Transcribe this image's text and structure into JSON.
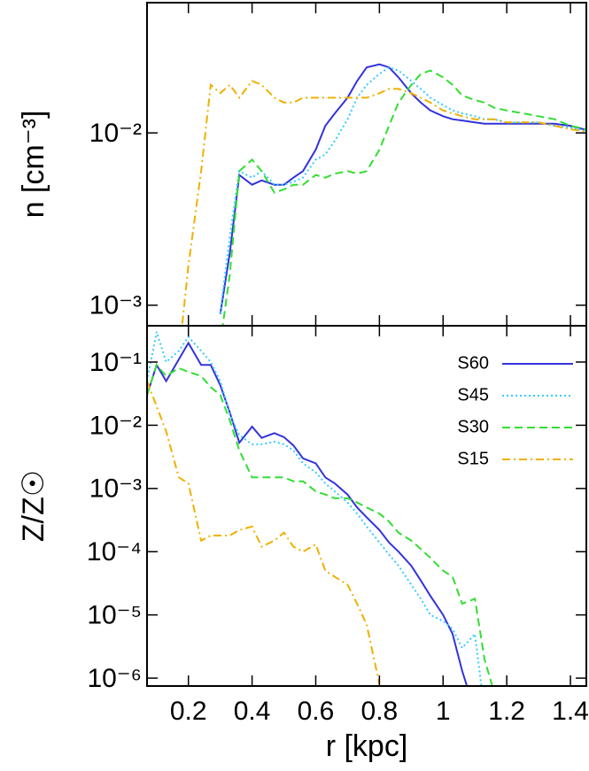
{
  "chart_data": [
    {
      "type": "line",
      "ylabel": "n [cm⁻³]",
      "ylog": true,
      "x": [
        0.07,
        0.1,
        0.13,
        0.17,
        0.2,
        0.24,
        0.27,
        0.3,
        0.33,
        0.36,
        0.4,
        0.43,
        0.47,
        0.5,
        0.53,
        0.56,
        0.6,
        0.63,
        0.66,
        0.7,
        0.73,
        0.76,
        0.8,
        0.83,
        0.86,
        0.9,
        0.93,
        0.96,
        1.0,
        1.03,
        1.06,
        1.1,
        1.13,
        1.16,
        1.2,
        1.25,
        1.3,
        1.35,
        1.4,
        1.45
      ],
      "xlim": [
        0.07,
        1.45
      ],
      "xticks": [
        0.2,
        0.4,
        0.6,
        0.8,
        1.0,
        1.2,
        1.4
      ],
      "ylim": [
        0.00076,
        0.057
      ],
      "yticks": [
        {
          "value": 0.001,
          "label": "10⁻³"
        },
        {
          "value": 0.01,
          "label": "10⁻²"
        }
      ],
      "series": [
        {
          "color": "#3333dd",
          "dash": "solid",
          "values": [
            null,
            null,
            null,
            null,
            null,
            null,
            null,
            0.00089,
            0.002,
            0.0057,
            0.005,
            0.0053,
            0.005,
            0.005,
            0.0055,
            0.006,
            0.008,
            0.011,
            0.013,
            0.016,
            0.02,
            0.024,
            0.025,
            0.024,
            0.021,
            0.017,
            0.015,
            0.0135,
            0.0125,
            0.012,
            0.0118,
            0.0115,
            0.0113,
            0.0113,
            0.0113,
            0.0113,
            0.0113,
            0.0113,
            0.011,
            0.0104
          ]
        },
        {
          "color": "#33ccff",
          "dash": "dotted",
          "values": [
            null,
            null,
            null,
            null,
            null,
            null,
            null,
            0.0009,
            0.0025,
            0.006,
            0.0055,
            0.006,
            0.005,
            0.005,
            0.0052,
            0.0055,
            0.007,
            0.0075,
            0.009,
            0.012,
            0.016,
            0.019,
            0.022,
            0.024,
            0.023,
            0.02,
            0.018,
            0.016,
            0.0145,
            0.0135,
            0.013,
            0.0125,
            0.012,
            0.012,
            0.0115,
            0.0115,
            0.0115,
            0.011,
            0.0107,
            0.0103
          ]
        },
        {
          "color": "#33dd33",
          "dash": "dashed",
          "values": [
            null,
            null,
            null,
            null,
            null,
            null,
            null,
            0.0006,
            0.0015,
            0.006,
            0.007,
            0.006,
            0.0045,
            0.0047,
            0.005,
            0.005,
            0.0057,
            0.0055,
            0.0058,
            0.006,
            0.0058,
            0.006,
            0.008,
            0.011,
            0.015,
            0.019,
            0.022,
            0.023,
            0.021,
            0.019,
            0.0165,
            0.0155,
            0.015,
            0.014,
            0.0135,
            0.013,
            0.0125,
            0.012,
            0.011,
            0.0105
          ]
        },
        {
          "color": "#f0b000",
          "dash": "dashdot",
          "values": [
            null,
            null,
            null,
            0.0005,
            0.0017,
            0.006,
            0.019,
            0.017,
            0.019,
            0.016,
            0.02,
            0.019,
            0.016,
            0.015,
            0.015,
            0.016,
            0.016,
            0.016,
            0.016,
            0.016,
            0.016,
            0.016,
            0.017,
            0.018,
            0.018,
            0.017,
            0.016,
            0.015,
            0.0135,
            0.013,
            0.0125,
            0.012,
            0.012,
            0.012,
            0.0115,
            0.0115,
            0.0115,
            0.011,
            0.0105,
            0.0102
          ]
        }
      ]
    },
    {
      "type": "line",
      "ylabel": "Z/Z☉",
      "xlabel": "r [kpc]",
      "ylog": true,
      "legend": "upper right",
      "x": [
        0.07,
        0.1,
        0.13,
        0.17,
        0.2,
        0.24,
        0.27,
        0.3,
        0.33,
        0.36,
        0.4,
        0.43,
        0.47,
        0.5,
        0.53,
        0.56,
        0.6,
        0.63,
        0.66,
        0.7,
        0.73,
        0.76,
        0.8,
        0.83,
        0.86,
        0.9,
        0.93,
        0.96,
        1.0,
        1.03,
        1.06,
        1.1,
        1.13,
        1.16,
        1.2,
        1.25,
        1.3,
        1.35,
        1.4,
        1.45
      ],
      "xlim": [
        0.07,
        1.45
      ],
      "xticks": [
        0.2,
        0.4,
        0.6,
        0.8,
        1.0,
        1.2,
        1.4
      ],
      "ylim": [
        7.5e-07,
        0.375
      ],
      "yticks": [
        {
          "value": 1e-06,
          "label": "10⁻⁶"
        },
        {
          "value": 1e-05,
          "label": "10⁻⁵"
        },
        {
          "value": 0.0001,
          "label": "10⁻⁴"
        },
        {
          "value": 0.001,
          "label": "10⁻³"
        },
        {
          "value": 0.01,
          "label": "10⁻²"
        },
        {
          "value": 0.1,
          "label": "10⁻¹"
        }
      ],
      "series": [
        {
          "name": "S60",
          "color": "#3333dd",
          "dash": "solid",
          "values": [
            0.03,
            0.09,
            0.05,
            0.11,
            0.2,
            0.09,
            0.09,
            0.043,
            0.016,
            0.0053,
            0.0095,
            0.0063,
            0.0075,
            0.0065,
            0.0048,
            0.003,
            0.0025,
            0.0015,
            0.0012,
            0.0008,
            0.0005,
            0.00035,
            0.00022,
            0.00014,
            0.0001,
            6e-05,
            3.5e-05,
            2e-05,
            1e-05,
            5e-06,
            1.3e-06,
            3e-07,
            null,
            null,
            null,
            null,
            null,
            null,
            null,
            null
          ]
        },
        {
          "name": "S45",
          "color": "#33ccff",
          "dash": "dotted",
          "values": [
            0.05,
            0.3,
            0.1,
            0.15,
            0.25,
            0.15,
            0.1,
            0.05,
            0.015,
            0.007,
            0.005,
            0.005,
            0.0055,
            0.005,
            0.004,
            0.0025,
            0.0018,
            0.0012,
            0.0009,
            0.0006,
            0.0004,
            0.00025,
            0.00014,
            9e-05,
            6e-05,
            3e-05,
            1.8e-05,
            1e-05,
            8e-06,
            6e-06,
            3e-06,
            5e-06,
            3e-07,
            null,
            null,
            null,
            null,
            null,
            null,
            null
          ]
        },
        {
          "name": "S30",
          "color": "#33dd33",
          "dash": "dashed",
          "values": [
            0.03,
            0.09,
            0.06,
            0.08,
            0.07,
            0.06,
            0.04,
            0.03,
            0.012,
            0.004,
            0.0015,
            0.0015,
            0.0015,
            0.0015,
            0.0013,
            0.0013,
            0.0009,
            0.0008,
            0.0007,
            0.0007,
            0.0006,
            0.0005,
            0.0004,
            0.0003,
            0.0002,
            0.00015,
            0.00011,
            8e-05,
            5e-05,
            4e-05,
            1.5e-05,
            1.8e-05,
            2e-06,
            6e-07,
            null,
            null,
            null,
            null,
            null,
            null
          ]
        },
        {
          "name": "S15",
          "color": "#f0b000",
          "dash": "dashdot",
          "values": [
            0.05,
            0.02,
            0.008,
            0.0015,
            0.0012,
            0.00015,
            0.00018,
            0.00018,
            0.00018,
            0.00022,
            0.00025,
            0.00012,
            0.00015,
            0.0002,
            0.00012,
            0.0001,
            0.00013,
            5e-05,
            4e-05,
            3e-05,
            1.5e-05,
            7e-06,
            8e-07,
            null,
            null,
            null,
            null,
            null,
            null,
            null,
            null,
            null,
            null,
            null,
            null,
            null,
            null,
            null,
            null,
            null
          ]
        }
      ]
    }
  ]
}
